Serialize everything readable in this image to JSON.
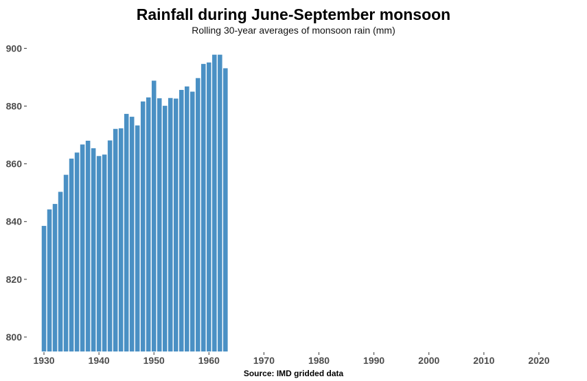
{
  "chart_data": {
    "type": "bar",
    "title": "Rainfall during June-September monsoon",
    "subtitle": "Rolling 30-year averages of monsoon rain (mm)",
    "caption": "Source: IMD gridded data",
    "xlabel": "",
    "ylabel": "",
    "x": [
      1930,
      1931,
      1932,
      1933,
      1934,
      1935,
      1936,
      1937,
      1938,
      1939,
      1940,
      1941,
      1942,
      1943,
      1944,
      1945,
      1946,
      1947,
      1948,
      1949,
      1950,
      1951,
      1952,
      1953,
      1954,
      1955,
      1956,
      1957,
      1958,
      1959,
      1960,
      1961,
      1962,
      1963
    ],
    "values": [
      838.5,
      844.2,
      846.1,
      850.3,
      856.2,
      861.8,
      863.9,
      866.7,
      868.0,
      865.4,
      862.7,
      863.2,
      868.1,
      872.1,
      872.3,
      877.3,
      876.3,
      873.3,
      881.6,
      883.0,
      888.8,
      882.7,
      880.1,
      882.8,
      882.6,
      885.6,
      886.8,
      885.0,
      889.7,
      894.6,
      895.1,
      897.8,
      897.8,
      893.1
    ],
    "color": "#4a90c4",
    "xlim": [
      1927,
      2026
    ],
    "ylim": [
      795,
      902
    ],
    "xticks": [
      1930,
      1940,
      1950,
      1960,
      1970,
      1980,
      1990,
      2000,
      2010,
      2020
    ],
    "yticks": [
      800,
      820,
      840,
      860,
      880,
      900
    ],
    "grid": false,
    "legend": "none"
  }
}
